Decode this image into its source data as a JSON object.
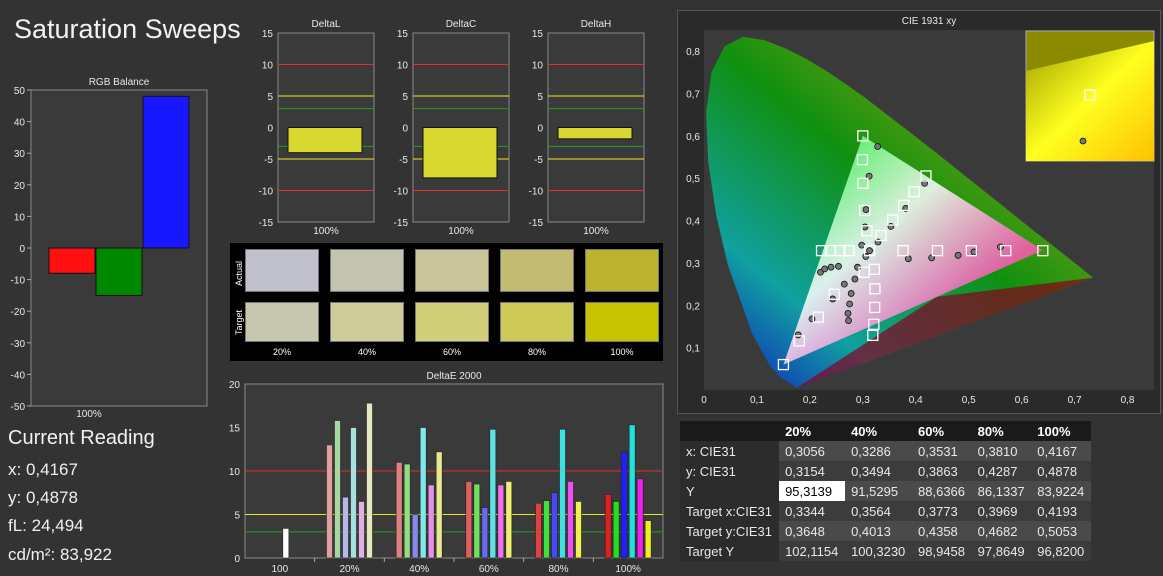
{
  "page": {
    "title": "Saturation Sweeps",
    "current_reading": {
      "title": "Current Reading",
      "x": "x: 0,4167",
      "y": "y: 0,4878",
      "fl": "fL: 24,494",
      "cdm2": "cd/m²: 83,922"
    }
  },
  "colors": {
    "red_line": "#e03030",
    "yellow_line": "#e8e820",
    "green_line": "#20a020",
    "bar_yellow": "#d8d830",
    "bar_red": "#ff1010",
    "bar_green": "#008800",
    "bar_blue": "#1818ff"
  },
  "chart_data": [
    {
      "id": "rgb_balance",
      "type": "bar",
      "title": "RGB Balance",
      "categories": [
        "100%"
      ],
      "series": [
        {
          "name": "R",
          "values": [
            -8
          ]
        },
        {
          "name": "G",
          "values": [
            -15
          ]
        },
        {
          "name": "B",
          "values": [
            48
          ]
        }
      ],
      "ylim": [
        -50,
        50
      ],
      "yticks": [
        "50",
        "40",
        "30",
        "20",
        "10",
        "0",
        "-10",
        "-20",
        "-30",
        "-40",
        "-50"
      ],
      "xlabel": "100%"
    },
    {
      "id": "delta_l",
      "type": "bar",
      "title": "DeltaL",
      "categories": [
        "100%"
      ],
      "values": [
        -4
      ],
      "ylim": [
        -15,
        15
      ],
      "yticks": [
        "15",
        "10",
        "5",
        "0",
        "-5",
        "-10",
        "-15"
      ],
      "xlabel": "100%"
    },
    {
      "id": "delta_c",
      "type": "bar",
      "title": "DeltaC",
      "categories": [
        "100%"
      ],
      "values": [
        -8
      ],
      "ylim": [
        -15,
        15
      ],
      "yticks": [
        "15",
        "10",
        "5",
        "0",
        "-5",
        "-10",
        "-15"
      ],
      "xlabel": "100%"
    },
    {
      "id": "delta_h",
      "type": "bar",
      "title": "DeltaH",
      "categories": [
        "100%"
      ],
      "values": [
        -1.8
      ],
      "ylim": [
        -15,
        15
      ],
      "yticks": [
        "15",
        "10",
        "5",
        "0",
        "-5",
        "-10",
        "-15"
      ],
      "xlabel": "100%"
    },
    {
      "id": "delta_e_2000",
      "type": "bar",
      "title": "DeltaE 2000",
      "categories": [
        "100",
        "20%",
        "40%",
        "60%",
        "80%",
        "100%"
      ],
      "ylim": [
        0,
        20
      ],
      "yticks": [
        "20",
        "15",
        "10",
        "5",
        "0"
      ],
      "groups": [
        {
          "category": "100",
          "bars": [
            {
              "color": "#ffffff",
              "value": 3.4
            }
          ]
        },
        {
          "category": "20%",
          "bars": [
            {
              "color": "#e0a0a0",
              "value": 13
            },
            {
              "color": "#a8d8a0",
              "value": 15.8
            },
            {
              "color": "#b8b8e8",
              "value": 7
            },
            {
              "color": "#a8e0e0",
              "value": 15
            },
            {
              "color": "#e0b0e0",
              "value": 6.5
            },
            {
              "color": "#e8e8c0",
              "value": 17.8
            }
          ]
        },
        {
          "category": "40%",
          "bars": [
            {
              "color": "#e08080",
              "value": 11
            },
            {
              "color": "#90e080",
              "value": 10.8
            },
            {
              "color": "#8888e8",
              "value": 5
            },
            {
              "color": "#80e8e8",
              "value": 15
            },
            {
              "color": "#e890e8",
              "value": 8.4
            },
            {
              "color": "#e8e890",
              "value": 12.2
            }
          ]
        },
        {
          "category": "60%",
          "bars": [
            {
              "color": "#e06060",
              "value": 8.8
            },
            {
              "color": "#70e060",
              "value": 8.5
            },
            {
              "color": "#6868f0",
              "value": 5.8
            },
            {
              "color": "#60e0e0",
              "value": 14.8
            },
            {
              "color": "#f070f0",
              "value": 8.4
            },
            {
              "color": "#f0f070",
              "value": 8.8
            }
          ]
        },
        {
          "category": "80%",
          "bars": [
            {
              "color": "#e04040",
              "value": 6.3
            },
            {
              "color": "#40e040",
              "value": 6.6
            },
            {
              "color": "#4848f8",
              "value": 7.5
            },
            {
              "color": "#40e0e0",
              "value": 14.8
            },
            {
              "color": "#f050f0",
              "value": 8.8
            },
            {
              "color": "#f0f050",
              "value": 6.5
            }
          ]
        },
        {
          "category": "100%",
          "bars": [
            {
              "color": "#e02020",
              "value": 7.3
            },
            {
              "color": "#20e020",
              "value": 6.5
            },
            {
              "color": "#2020ff",
              "value": 12.2
            },
            {
              "color": "#20e0e0",
              "value": 15.3
            },
            {
              "color": "#f020f0",
              "value": 9.1
            },
            {
              "color": "#f0f020",
              "value": 4.3
            }
          ]
        }
      ]
    },
    {
      "id": "cie_1931_xy",
      "type": "scatter",
      "title": "CIE 1931 xy",
      "xlim": [
        0,
        0.85
      ],
      "ylim": [
        0,
        0.85
      ],
      "xticks": [
        "0",
        "0,1",
        "0,2",
        "0,3",
        "0,4",
        "0,5",
        "0,6",
        "0,7",
        "0,8"
      ],
      "yticks": [
        "0",
        "0,1",
        "0,2",
        "0,3",
        "0,4",
        "0,5",
        "0,6",
        "0,7",
        "0,8"
      ],
      "gamut_triangle": [
        [
          0.64,
          0.33
        ],
        [
          0.3,
          0.6
        ],
        [
          0.15,
          0.06
        ]
      ],
      "targets": [
        [
          0.3127,
          0.329
        ],
        [
          0.222,
          0.329
        ],
        [
          0.239,
          0.329
        ],
        [
          0.257,
          0.329
        ],
        [
          0.274,
          0.329
        ],
        [
          0.376,
          0.329
        ],
        [
          0.441,
          0.329
        ],
        [
          0.505,
          0.329
        ],
        [
          0.57,
          0.329
        ],
        [
          0.64,
          0.329
        ],
        [
          0.3079,
          0.376
        ],
        [
          0.3036,
          0.424
        ],
        [
          0.3001,
          0.488
        ],
        [
          0.2993,
          0.544
        ],
        [
          0.3,
          0.6
        ],
        [
          0.3024,
          0.278
        ],
        [
          0.246,
          0.226
        ],
        [
          0.216,
          0.172
        ],
        [
          0.18,
          0.116
        ],
        [
          0.15,
          0.06
        ],
        [
          0.3218,
          0.285
        ],
        [
          0.3228,
          0.239
        ],
        [
          0.3224,
          0.195
        ],
        [
          0.3208,
          0.155
        ],
        [
          0.3189,
          0.129
        ],
        [
          0.3344,
          0.3648
        ],
        [
          0.3564,
          0.4013
        ],
        [
          0.3773,
          0.4358
        ],
        [
          0.3969,
          0.4682
        ],
        [
          0.4193,
          0.5053
        ]
      ],
      "measured": [
        [
          0.3127,
          0.329
        ],
        [
          0.22,
          0.278
        ],
        [
          0.228,
          0.286
        ],
        [
          0.24,
          0.29
        ],
        [
          0.254,
          0.292
        ],
        [
          0.386,
          0.31
        ],
        [
          0.43,
          0.312
        ],
        [
          0.48,
          0.318
        ],
        [
          0.51,
          0.326
        ],
        [
          0.56,
          0.338
        ],
        [
          0.298,
          0.342
        ],
        [
          0.304,
          0.385
        ],
        [
          0.306,
          0.426
        ],
        [
          0.312,
          0.505
        ],
        [
          0.328,
          0.575
        ],
        [
          0.29,
          0.29
        ],
        [
          0.265,
          0.25
        ],
        [
          0.243,
          0.215
        ],
        [
          0.204,
          0.168
        ],
        [
          0.178,
          0.13
        ],
        [
          0.285,
          0.262
        ],
        [
          0.278,
          0.228
        ],
        [
          0.275,
          0.203
        ],
        [
          0.272,
          0.181
        ],
        [
          0.273,
          0.164
        ],
        [
          0.3056,
          0.3154
        ],
        [
          0.3286,
          0.3494
        ],
        [
          0.3531,
          0.3863
        ],
        [
          0.381,
          0.4287
        ],
        [
          0.4167,
          0.4878
        ]
      ]
    }
  ],
  "swatches": {
    "row_labels": [
      "Actual",
      "Target"
    ],
    "columns": [
      "20%",
      "40%",
      "60%",
      "80%",
      "100%"
    ],
    "actual": [
      "#c1c0cd",
      "#c4c2b0",
      "#c9c49a",
      "#c3bb72",
      "#bcb330"
    ],
    "target": [
      "#c7c6ae",
      "#cfcc9b",
      "#d2cf7b",
      "#cdca57",
      "#c8c302"
    ]
  },
  "table": {
    "headers": [
      "",
      "20%",
      "40%",
      "60%",
      "80%",
      "100%"
    ],
    "rows": [
      {
        "label": "x: CIE31",
        "cells": [
          "0,3056",
          "0,3286",
          "0,3531",
          "0,3810",
          "0,4167"
        ]
      },
      {
        "label": "y: CIE31",
        "cells": [
          "0,3154",
          "0,3494",
          "0,3863",
          "0,4287",
          "0,4878"
        ]
      },
      {
        "label": "Y",
        "cells": [
          "95,3139",
          "91,5295",
          "88,6366",
          "86,1337",
          "83,9224"
        ]
      },
      {
        "label": "Target x:CIE31",
        "cells": [
          "0,3344",
          "0,3564",
          "0,3773",
          "0,3969",
          "0,4193"
        ]
      },
      {
        "label": "Target y:CIE31",
        "cells": [
          "0,3648",
          "0,4013",
          "0,4358",
          "0,4682",
          "0,5053"
        ]
      },
      {
        "label": "Target Y",
        "cells": [
          "102,1154",
          "100,3230",
          "98,9458",
          "97,8649",
          "96,8200"
        ]
      }
    ]
  }
}
